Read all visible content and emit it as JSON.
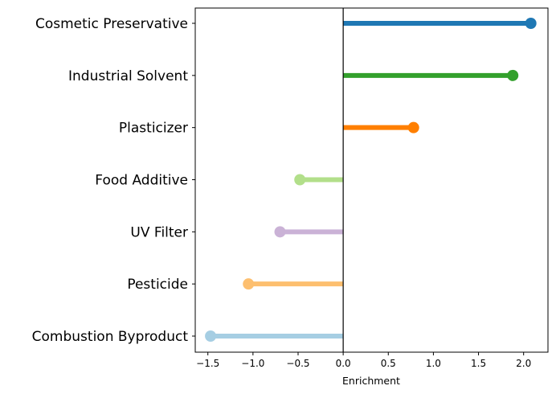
{
  "chart_data": {
    "type": "lollipop",
    "title": "",
    "xlabel": "Enrichment",
    "ylabel": "",
    "xlim": [
      -1.64,
      2.27
    ],
    "xticks": [
      -1.5,
      -1.0,
      -0.5,
      0.0,
      0.5,
      1.0,
      1.5,
      2.0
    ],
    "xtick_labels": [
      "−1.5",
      "−1.0",
      "−0.5",
      "0.0",
      "0.5",
      "1.0",
      "1.5",
      "2.0"
    ],
    "grid": false,
    "categories": [
      "Cosmetic Preservative",
      "Industrial Solvent",
      "Plasticizer",
      "Food Additive",
      "UV Filter",
      "Pesticide",
      "Combustion Byproduct"
    ],
    "values": [
      2.08,
      1.88,
      0.78,
      -0.48,
      -0.7,
      -1.05,
      -1.47
    ],
    "colors": [
      "#1f78b4",
      "#33a02c",
      "#ff7f00",
      "#b2df8a",
      "#cab2d6",
      "#fdbf6f",
      "#a6cee3"
    ]
  }
}
